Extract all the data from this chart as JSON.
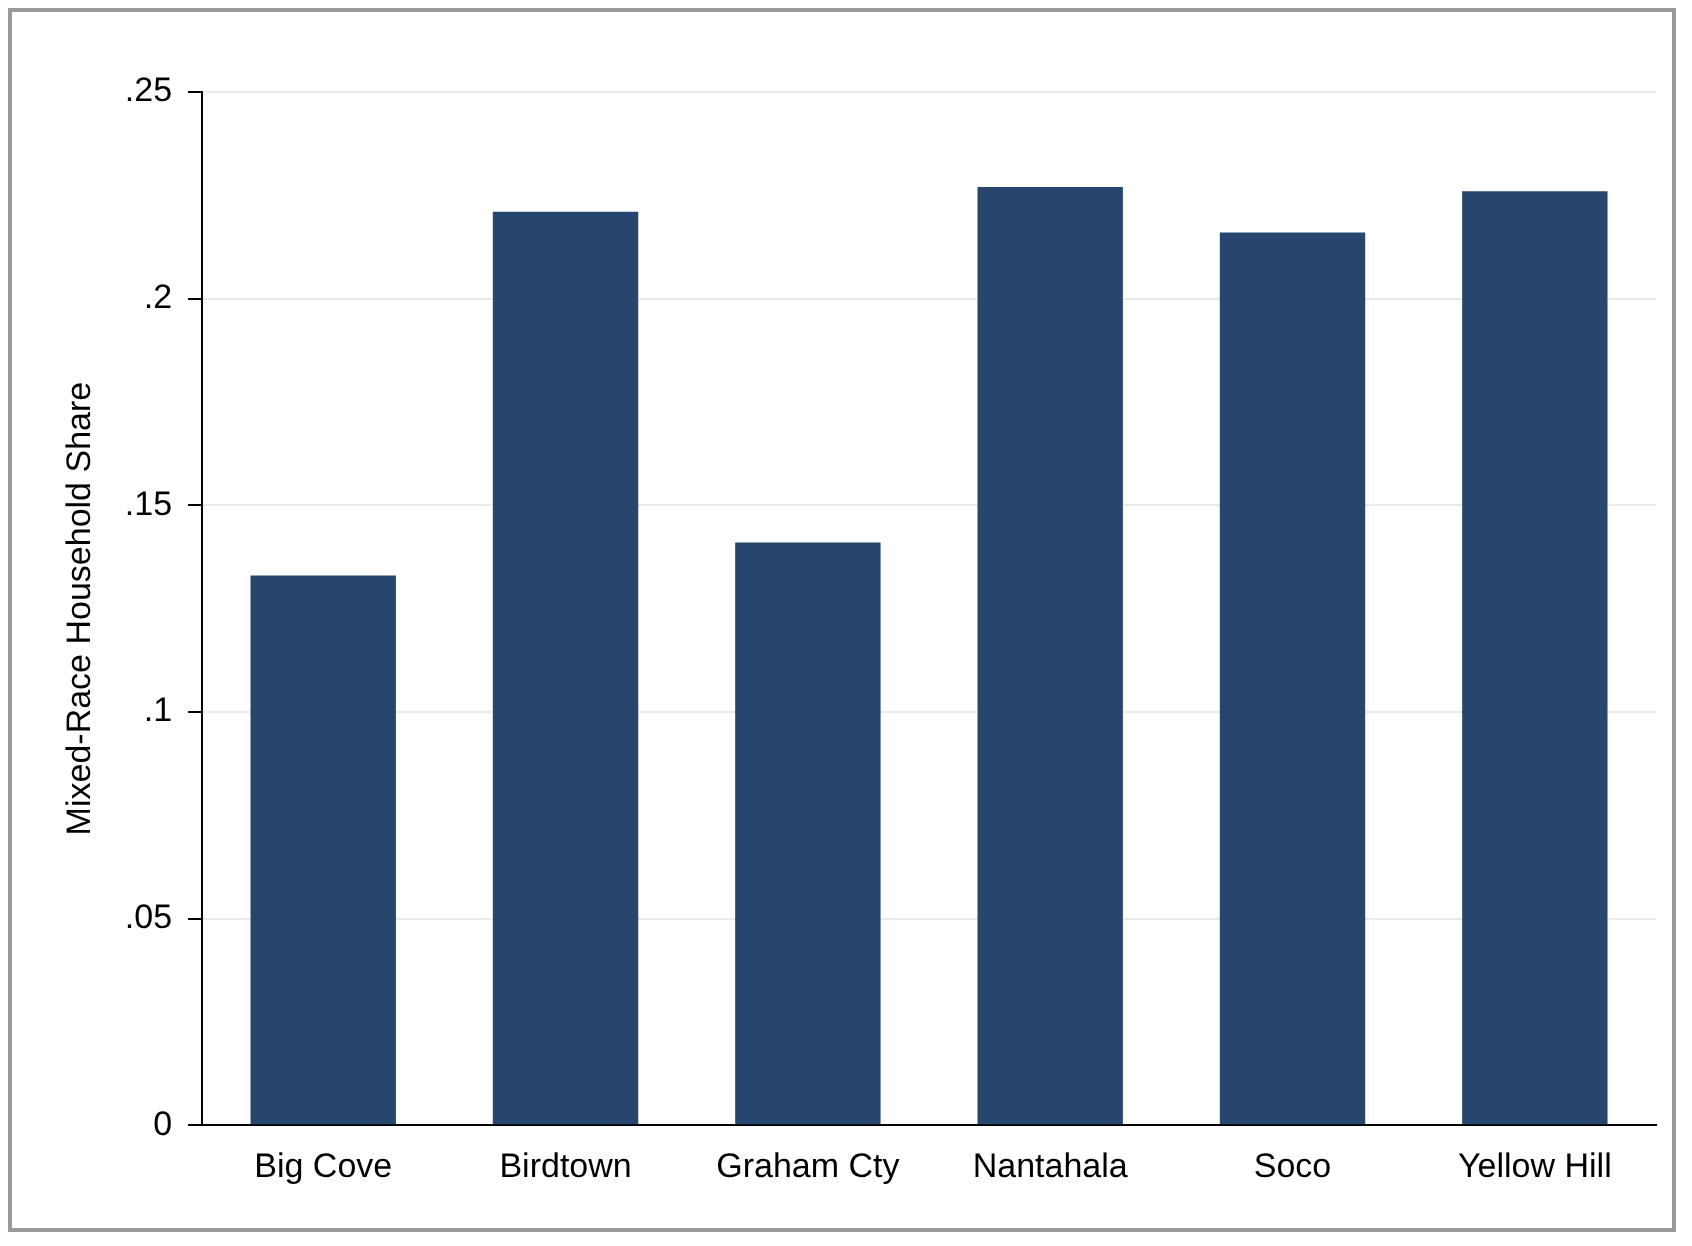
{
  "chart_data": {
    "type": "bar",
    "ylabel": "Mixed-Race Household Share",
    "categories": [
      "Big Cove",
      "Birdtown",
      "Graham Cty",
      "Nantahala",
      "Soco",
      "Yellow Hill"
    ],
    "values": [
      0.133,
      0.221,
      0.141,
      0.227,
      0.216,
      0.226
    ],
    "color": "#26466d",
    "ylim": [
      0,
      0.25
    ],
    "yticks": [
      0,
      {
        "value": 0.05,
        "label": ".05"
      },
      {
        "value": 0.1,
        "label": ".1"
      },
      {
        "value": 0.15,
        "label": ".15"
      },
      {
        "value": 0.2,
        "label": ".2"
      },
      {
        "value": 0.25,
        "label": ".25"
      }
    ],
    "grid": "y",
    "legend": false
  }
}
